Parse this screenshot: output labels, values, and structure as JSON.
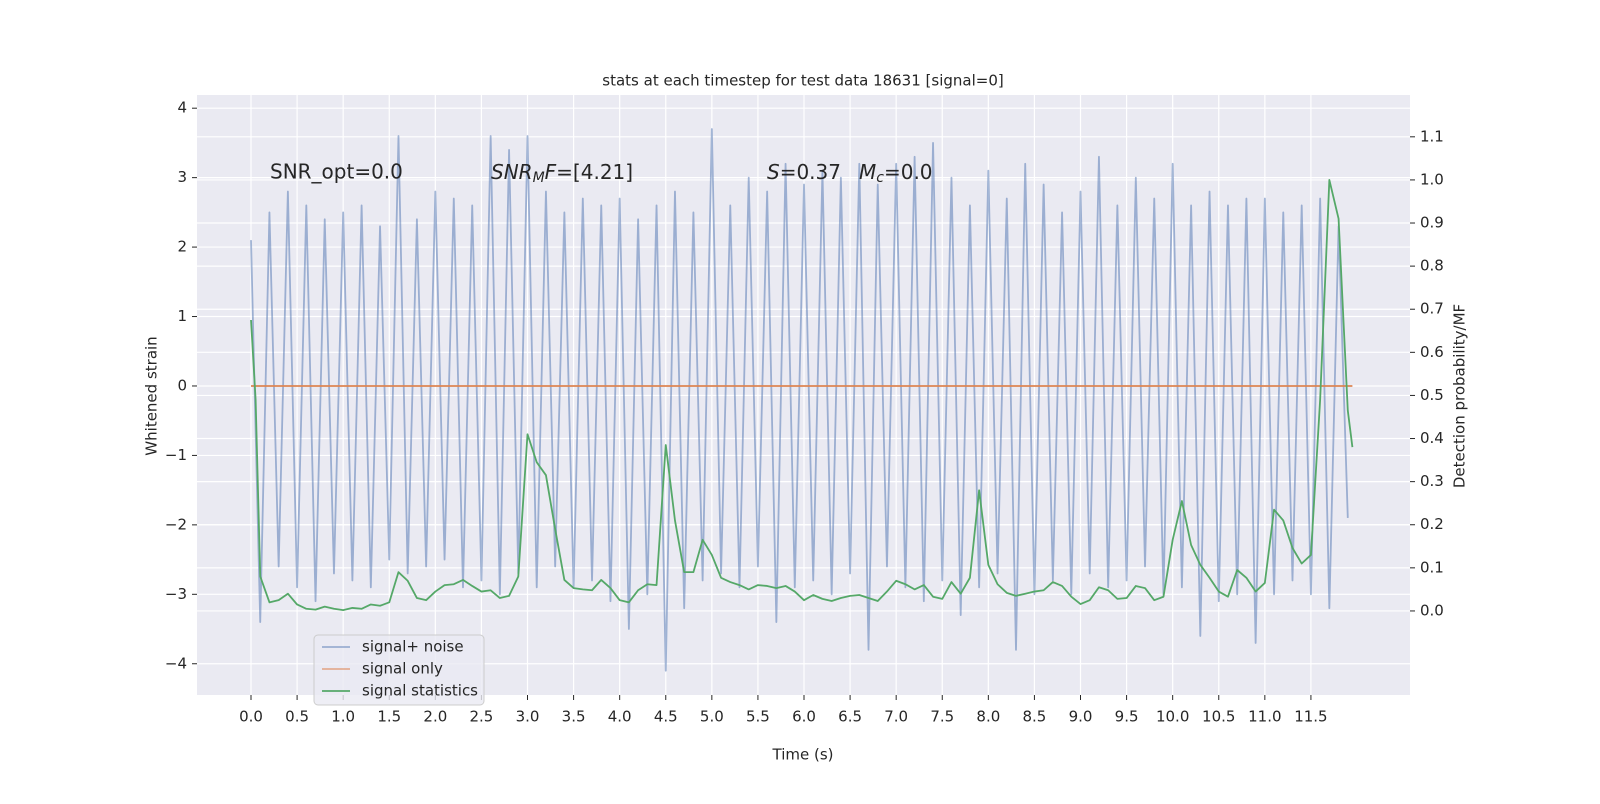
{
  "chart_data": {
    "type": "line",
    "title": "stats at each timestep for test data 18631 [signal=0]",
    "xlabel": "Time (s)",
    "ylabel": "Whitened strain",
    "y2label": "Detection probability/MF",
    "xlim": [
      -0.586,
      12.575
    ],
    "ylim": [
      -4.45,
      4.19
    ],
    "y2lim": [
      -0.195,
      1.197
    ],
    "xticks": [
      {
        "value": 0,
        "label": "0.0"
      },
      {
        "value": 0.5,
        "label": "0.5"
      },
      {
        "value": 1,
        "label": "1.0"
      },
      {
        "value": 1.5,
        "label": "1.5"
      },
      {
        "value": 2,
        "label": "2.0"
      },
      {
        "value": 2.5,
        "label": "2.5"
      },
      {
        "value": 3,
        "label": "3.0"
      },
      {
        "value": 3.5,
        "label": "3.5"
      },
      {
        "value": 4,
        "label": "4.0"
      },
      {
        "value": 4.5,
        "label": "4.5"
      },
      {
        "value": 5,
        "label": "5.0"
      },
      {
        "value": 5.5,
        "label": "5.5"
      },
      {
        "value": 6,
        "label": "6.0"
      },
      {
        "value": 6.5,
        "label": "6.5"
      },
      {
        "value": 7,
        "label": "7.0"
      },
      {
        "value": 7.5,
        "label": "7.5"
      },
      {
        "value": 8,
        "label": "8.0"
      },
      {
        "value": 8.5,
        "label": "8.5"
      },
      {
        "value": 9,
        "label": "9.0"
      },
      {
        "value": 9.5,
        "label": "9.5"
      },
      {
        "value": 10,
        "label": "10.0"
      },
      {
        "value": 10.5,
        "label": "10.5"
      },
      {
        "value": 11,
        "label": "11.0"
      },
      {
        "value": 11.5,
        "label": "11.5"
      }
    ],
    "yticks": [
      {
        "value": -4,
        "label": "−4"
      },
      {
        "value": -3,
        "label": "−3"
      },
      {
        "value": -2,
        "label": "−2"
      },
      {
        "value": -1,
        "label": "−1"
      },
      0,
      1,
      2,
      3,
      4
    ],
    "y2ticks": [
      {
        "value": 0,
        "label": "0.0"
      },
      {
        "value": 0.1,
        "label": "0.1"
      },
      {
        "value": 0.2,
        "label": "0.2"
      },
      {
        "value": 0.3,
        "label": "0.3"
      },
      {
        "value": 0.4,
        "label": "0.4"
      },
      {
        "value": 0.5,
        "label": "0.5"
      },
      {
        "value": 0.6,
        "label": "0.6"
      },
      {
        "value": 0.7,
        "label": "0.7"
      },
      {
        "value": 0.8,
        "label": "0.8"
      },
      {
        "value": 0.9,
        "label": "0.9"
      },
      {
        "value": 1,
        "label": "1.0"
      },
      {
        "value": 1.1,
        "label": "1.1"
      }
    ],
    "grid": true,
    "legend": "lower left",
    "annotations": [
      [
        "SNR_opt=0.0"
      ],
      [
        "SNR",
        "M",
        "F",
        "=[4.21]"
      ],
      [
        "S",
        "=0.37",
        "M",
        "c",
        "=0.0"
      ]
    ],
    "series": [
      {
        "name": "signal+ noise",
        "color": "#4c72b0",
        "alpha": 0.5,
        "x": [
          0,
          0.1,
          0.2,
          0.3,
          0.4,
          0.5,
          0.6,
          0.7,
          0.8,
          0.9,
          1,
          1.1,
          1.2,
          1.3,
          1.4,
          1.5,
          1.6,
          1.7,
          1.8,
          1.9,
          2,
          2.1,
          2.2,
          2.3,
          2.4,
          2.5,
          2.6,
          2.7,
          2.8,
          2.9,
          3,
          3.1,
          3.2,
          3.3,
          3.4,
          3.5,
          3.6,
          3.7,
          3.8,
          3.9,
          4,
          4.1,
          4.2,
          4.3,
          4.4,
          4.5,
          4.6,
          4.7,
          4.8,
          4.9,
          5,
          5.1,
          5.2,
          5.3,
          5.4,
          5.5,
          5.6,
          5.7,
          5.8,
          5.9,
          6,
          6.1,
          6.2,
          6.3,
          6.4,
          6.5,
          6.6,
          6.7,
          6.8,
          6.9,
          7,
          7.1,
          7.2,
          7.3,
          7.4,
          7.5,
          7.6,
          7.7,
          7.8,
          7.9,
          8,
          8.1,
          8.2,
          8.3,
          8.4,
          8.5,
          8.6,
          8.7,
          8.8,
          8.9,
          9,
          9.1,
          9.2,
          9.3,
          9.4,
          9.5,
          9.6,
          9.7,
          9.8,
          9.9,
          10,
          10.1,
          10.2,
          10.3,
          10.4,
          10.5,
          10.6,
          10.7,
          10.8,
          10.9,
          11,
          11.1,
          11.2,
          11.3,
          11.4,
          11.5,
          11.6,
          11.7,
          11.8,
          11.9
        ],
        "values": [
          2.1,
          -3.4,
          2.5,
          -2.6,
          2.8,
          -2.9,
          2.6,
          -3.1,
          2.4,
          -2.7,
          2.5,
          -2.8,
          2.6,
          -2.9,
          2.3,
          -2.5,
          3.6,
          -2.7,
          2.4,
          -2.6,
          2.8,
          -2.5,
          2.7,
          -2.9,
          2.6,
          -2.8,
          3.6,
          -3.0,
          3.4,
          -2.7,
          3.6,
          -2.9,
          2.8,
          -2.6,
          2.5,
          -2.9,
          2.7,
          -2.8,
          2.6,
          -3.1,
          2.7,
          -3.5,
          2.4,
          -3.0,
          2.6,
          -4.1,
          2.8,
          -3.2,
          2.5,
          -2.8,
          3.7,
          -2.7,
          2.6,
          -2.9,
          3.0,
          -2.6,
          2.8,
          -3.4,
          3.2,
          -2.9,
          2.9,
          -2.8,
          3.1,
          -3.0,
          3.0,
          -2.7,
          3.2,
          -3.8,
          2.9,
          -2.6,
          3.2,
          -2.9,
          3.3,
          -3.1,
          3.5,
          -2.8,
          3.0,
          -3.3,
          2.6,
          -2.9,
          3.1,
          -2.7,
          2.7,
          -3.8,
          3.2,
          -3.0,
          2.9,
          -2.8,
          2.5,
          -3.0,
          2.8,
          -2.7,
          3.3,
          -2.9,
          2.6,
          -2.8,
          3.0,
          -2.6,
          2.7,
          -3.0,
          3.2,
          -2.9,
          2.6,
          -3.6,
          2.8,
          -3.1,
          2.6,
          -3.0,
          2.7,
          -3.7,
          2.7,
          -3.0,
          2.5,
          -2.8,
          2.6,
          -3.0,
          2.7,
          -3.2,
          2.3,
          -1.9
        ]
      },
      {
        "name": "signal only",
        "color": "#dd8452",
        "x": [
          0,
          11.95
        ],
        "values": [
          0,
          0
        ]
      },
      {
        "name": "signal statistics",
        "color": "#55a868",
        "axis": "y2",
        "x": [
          0,
          0.05,
          0.1,
          0.2,
          0.3,
          0.4,
          0.5,
          0.6,
          0.7,
          0.8,
          0.9,
          1,
          1.1,
          1.2,
          1.3,
          1.4,
          1.5,
          1.6,
          1.7,
          1.8,
          1.9,
          2,
          2.1,
          2.2,
          2.3,
          2.4,
          2.5,
          2.6,
          2.7,
          2.8,
          2.9,
          3,
          3.1,
          3.2,
          3.3,
          3.4,
          3.5,
          3.6,
          3.7,
          3.8,
          3.9,
          4,
          4.1,
          4.2,
          4.3,
          4.4,
          4.5,
          4.6,
          4.7,
          4.8,
          4.9,
          5,
          5.1,
          5.2,
          5.3,
          5.4,
          5.5,
          5.6,
          5.7,
          5.8,
          5.9,
          6,
          6.1,
          6.2,
          6.3,
          6.4,
          6.5,
          6.6,
          6.7,
          6.8,
          6.9,
          7,
          7.1,
          7.2,
          7.3,
          7.4,
          7.5,
          7.6,
          7.7,
          7.8,
          7.9,
          8,
          8.1,
          8.2,
          8.3,
          8.4,
          8.5,
          8.6,
          8.7,
          8.8,
          8.9,
          9,
          9.1,
          9.2,
          9.3,
          9.4,
          9.5,
          9.6,
          9.7,
          9.8,
          9.9,
          10,
          10.1,
          10.2,
          10.3,
          10.4,
          10.5,
          10.6,
          10.7,
          10.8,
          10.9,
          11,
          11.1,
          11.2,
          11.3,
          11.4,
          11.5,
          11.6,
          11.7,
          11.8,
          11.9,
          11.95
        ],
        "values": [
          0.675,
          0.49,
          0.08,
          0.02,
          0.025,
          0.04,
          0.015,
          0.005,
          0.003,
          0.01,
          0.005,
          0.002,
          0.007,
          0.005,
          0.015,
          0.012,
          0.02,
          0.09,
          0.07,
          0.03,
          0.025,
          0.045,
          0.06,
          0.062,
          0.072,
          0.058,
          0.045,
          0.048,
          0.03,
          0.035,
          0.08,
          0.41,
          0.345,
          0.315,
          0.19,
          0.072,
          0.053,
          0.05,
          0.048,
          0.072,
          0.053,
          0.025,
          0.02,
          0.048,
          0.062,
          0.06,
          0.385,
          0.21,
          0.09,
          0.09,
          0.165,
          0.13,
          0.077,
          0.067,
          0.06,
          0.05,
          0.06,
          0.058,
          0.053,
          0.058,
          0.045,
          0.025,
          0.037,
          0.028,
          0.023,
          0.03,
          0.035,
          0.037,
          0.03,
          0.023,
          0.045,
          0.07,
          0.062,
          0.05,
          0.06,
          0.033,
          0.028,
          0.067,
          0.04,
          0.077,
          0.28,
          0.107,
          0.062,
          0.042,
          0.035,
          0.04,
          0.045,
          0.048,
          0.067,
          0.058,
          0.033,
          0.016,
          0.025,
          0.055,
          0.048,
          0.028,
          0.03,
          0.058,
          0.053,
          0.025,
          0.033,
          0.165,
          0.255,
          0.153,
          0.107,
          0.077,
          0.045,
          0.033,
          0.095,
          0.077,
          0.045,
          0.065,
          0.235,
          0.21,
          0.146,
          0.11,
          0.13,
          0.49,
          1.0,
          0.91,
          0.465,
          0.38
        ]
      }
    ]
  }
}
